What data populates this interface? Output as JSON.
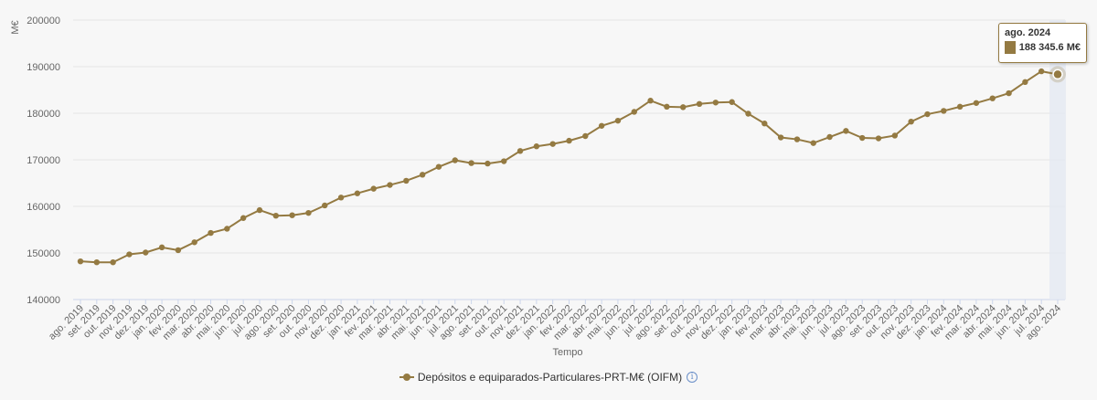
{
  "chart_data": {
    "type": "line",
    "ylabel": "M€",
    "xlabel": "Tempo",
    "ylim": [
      140000,
      200000
    ],
    "yticks": [
      140000,
      150000,
      160000,
      170000,
      180000,
      190000,
      200000
    ],
    "ytick_labels": [
      "140000",
      "150000",
      "160000",
      "170000",
      "180000",
      "190000",
      "200000"
    ],
    "grid": true,
    "legend_position": "bottom",
    "categories": [
      "ago. 2019",
      "set. 2019",
      "out. 2019",
      "nov. 2019",
      "dez. 2019",
      "jan. 2020",
      "fev. 2020",
      "mar. 2020",
      "abr. 2020",
      "mai. 2020",
      "jun. 2020",
      "jul. 2020",
      "ago. 2020",
      "set. 2020",
      "out. 2020",
      "nov. 2020",
      "dez. 2020",
      "jan. 2021",
      "fev. 2021",
      "mar. 2021",
      "abr. 2021",
      "mai. 2021",
      "jun. 2021",
      "jul. 2021",
      "ago. 2021",
      "set. 2021",
      "out. 2021",
      "nov. 2021",
      "dez. 2021",
      "jan. 2022",
      "fev. 2022",
      "mar. 2022",
      "abr. 2022",
      "mai. 2022",
      "jun. 2022",
      "jul. 2022",
      "ago. 2022",
      "set. 2022",
      "out. 2022",
      "nov. 2022",
      "dez. 2022",
      "jan. 2023",
      "fev. 2023",
      "mar. 2023",
      "abr. 2023",
      "mai. 2023",
      "jun. 2023",
      "jul. 2023",
      "ago. 2023",
      "set. 2023",
      "out. 2023",
      "nov. 2023",
      "dez. 2023",
      "jan. 2024",
      "fev. 2024",
      "mar. 2024",
      "abr. 2024",
      "mai. 2024",
      "jun. 2024",
      "jul. 2024",
      "ago. 2024"
    ],
    "series": [
      {
        "name": "Depósitos e equiparados-Particulares-PRT-M€ (OIFM)",
        "color": "#947a42",
        "values": [
          148200,
          148000,
          148000,
          149700,
          150100,
          151200,
          150600,
          152300,
          154300,
          155200,
          157500,
          159200,
          158000,
          158100,
          158600,
          160200,
          161900,
          162800,
          163800,
          164600,
          165500,
          166800,
          168500,
          169900,
          169300,
          169200,
          169700,
          171900,
          172900,
          173400,
          174100,
          175100,
          177300,
          178400,
          180300,
          182700,
          181400,
          181300,
          182000,
          182300,
          182400,
          179900,
          177800,
          174800,
          174400,
          173600,
          174900,
          176200,
          174700,
          174600,
          175200,
          178200,
          179800,
          180500,
          181400,
          182200,
          183200,
          184300,
          186700,
          189000,
          188345.6
        ]
      }
    ],
    "highlight_index": 60,
    "tooltip": {
      "title": "ago. 2024",
      "value_text": "188 345.6 M€"
    }
  }
}
